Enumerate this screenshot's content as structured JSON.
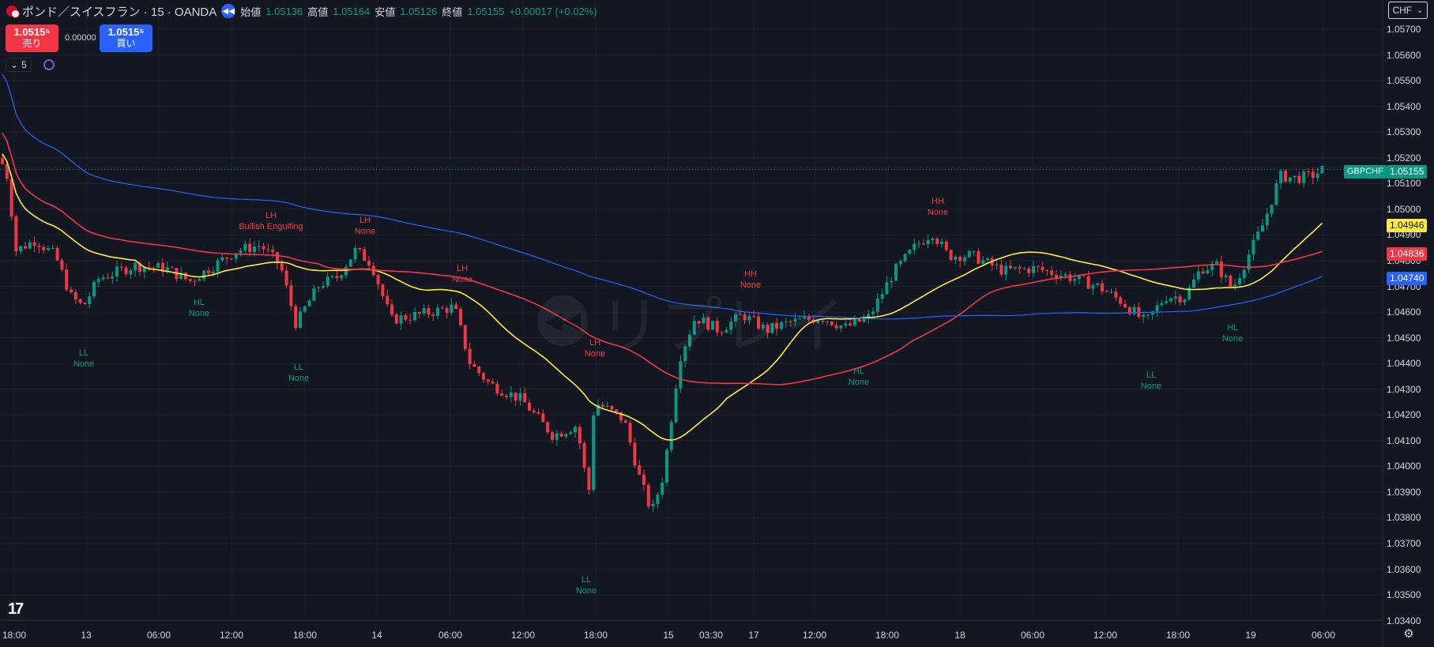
{
  "header": {
    "symbol": "ポンド／スイスフラン · 15 · OANDA",
    "open_label": "始値",
    "open": "1.05136",
    "high_label": "高値",
    "high": "1.05164",
    "low_label": "安値",
    "low": "1.05126",
    "close_label": "終値",
    "close": "1.05155",
    "change": "+0.00017 (+0.02%)"
  },
  "trade": {
    "sell_price": "1.0515⁵",
    "sell_label": "売り",
    "spread": "0.00000",
    "buy_price": "1.0515⁵",
    "buy_label": "買い"
  },
  "indicators_count": "5",
  "currency": "CHF",
  "watermark_text": "リプレイ",
  "price_axis": [
    "1.05700",
    "1.05600",
    "1.05500",
    "1.05400",
    "1.05300",
    "1.05200",
    "1.05100",
    "1.05000",
    "1.04900",
    "1.04800",
    "1.04700",
    "1.04600",
    "1.04500",
    "1.04400",
    "1.04300",
    "1.04200",
    "1.04100",
    "1.04000",
    "1.03900",
    "1.03800",
    "1.03700",
    "1.03600",
    "1.03500",
    "1.03400"
  ],
  "time_axis": [
    "18:00",
    "13",
    "06:00",
    "12:00",
    "18:00",
    "14",
    "06:00",
    "12:00",
    "18:00",
    "15",
    "03:30",
    "17",
    "12:00",
    "18:00",
    "18",
    "06:00",
    "12:00",
    "18:00",
    "19",
    "06:00"
  ],
  "price_tags": {
    "symbol": "GBPCHF",
    "last": "1.05155",
    "ma_yellow": "1.04946",
    "ma_red": "1.04836",
    "ma_blue": "1.04740"
  },
  "colors": {
    "bull": "#089981",
    "bear": "#f23645",
    "ma_yellow": "#ffeb3b",
    "ma_red": "#f23645",
    "ma_blue": "#2962ff",
    "background": "#131722"
  },
  "annotations": [
    {
      "line1": "LL",
      "line2": "None",
      "color": "teal"
    },
    {
      "line1": "HL",
      "line2": "None",
      "color": "teal"
    },
    {
      "line1": "LH",
      "line2": "Bullish Engulfing",
      "color": "red"
    },
    {
      "line1": "LL",
      "line2": "None",
      "color": "teal"
    },
    {
      "line1": "LH",
      "line2": "None",
      "color": "red"
    },
    {
      "line1": "LH",
      "line2": "None",
      "color": "red"
    },
    {
      "line1": "LH",
      "line2": "None",
      "color": "red"
    },
    {
      "line1": "LL",
      "line2": "None",
      "color": "teal"
    },
    {
      "line1": "HH",
      "line2": "None",
      "color": "red"
    },
    {
      "line1": "HH",
      "line2": "None",
      "color": "red"
    },
    {
      "line1": "HL",
      "line2": "None",
      "color": "teal"
    },
    {
      "line1": "LL",
      "line2": "None",
      "color": "teal"
    },
    {
      "line1": "HL",
      "line2": "None",
      "color": "teal"
    }
  ],
  "chart_data": {
    "type": "candlestick",
    "title": "ポンド／スイスフラン · 15 · OANDA",
    "ylim": [
      1.034,
      1.0575
    ],
    "last_price": 1.05155,
    "moving_averages": [
      {
        "color": "#ffeb3b",
        "last": 1.04946
      },
      {
        "color": "#f23645",
        "last": 1.04836
      },
      {
        "color": "#2962ff",
        "last": 1.0474
      }
    ],
    "price_path": [
      [
        0,
        1.052
      ],
      [
        10,
        1.0512
      ],
      [
        20,
        1.0484
      ],
      [
        45,
        1.0488
      ],
      [
        70,
        1.0482
      ],
      [
        90,
        1.0466
      ],
      [
        105,
        1.0462
      ],
      [
        125,
        1.0473
      ],
      [
        170,
        1.0478
      ],
      [
        210,
        1.0477
      ],
      [
        240,
        1.0472
      ],
      [
        270,
        1.0478
      ],
      [
        300,
        1.0484
      ],
      [
        330,
        1.0486
      ],
      [
        355,
        1.0478
      ],
      [
        375,
        1.0455
      ],
      [
        385,
        1.0461
      ],
      [
        405,
        1.0471
      ],
      [
        425,
        1.0473
      ],
      [
        450,
        1.0484
      ],
      [
        470,
        1.0479
      ],
      [
        495,
        1.0457
      ],
      [
        530,
        1.0459
      ],
      [
        575,
        1.0462
      ],
      [
        595,
        1.044
      ],
      [
        620,
        1.0432
      ],
      [
        660,
        1.0426
      ],
      [
        700,
        1.0412
      ],
      [
        730,
        1.0416
      ],
      [
        745,
        1.0389
      ],
      [
        752,
        1.0425
      ],
      [
        770,
        1.0422
      ],
      [
        790,
        1.0418
      ],
      [
        810,
        1.0395
      ],
      [
        825,
        1.0382
      ],
      [
        840,
        1.0397
      ],
      [
        860,
        1.0442
      ],
      [
        880,
        1.0458
      ],
      [
        910,
        1.0453
      ],
      [
        940,
        1.0459
      ],
      [
        970,
        1.0453
      ],
      [
        1000,
        1.0456
      ],
      [
        1040,
        1.0458
      ],
      [
        1070,
        1.0454
      ],
      [
        1100,
        1.0458
      ],
      [
        1130,
        1.0475
      ],
      [
        1160,
        1.0486
      ],
      [
        1180,
        1.0491
      ],
      [
        1200,
        1.0482
      ],
      [
        1230,
        1.0482
      ],
      [
        1270,
        1.0476
      ],
      [
        1310,
        1.0477
      ],
      [
        1350,
        1.0474
      ],
      [
        1390,
        1.047
      ],
      [
        1420,
        1.0464
      ],
      [
        1450,
        1.0456
      ],
      [
        1475,
        1.0466
      ],
      [
        1500,
        1.0466
      ],
      [
        1520,
        1.0477
      ],
      [
        1540,
        1.0478
      ],
      [
        1560,
        1.0469
      ],
      [
        1580,
        1.0482
      ],
      [
        1600,
        1.0495
      ],
      [
        1620,
        1.0513
      ],
      [
        1640,
        1.0512
      ],
      [
        1660,
        1.0513
      ],
      [
        1675,
        1.05155
      ]
    ]
  }
}
